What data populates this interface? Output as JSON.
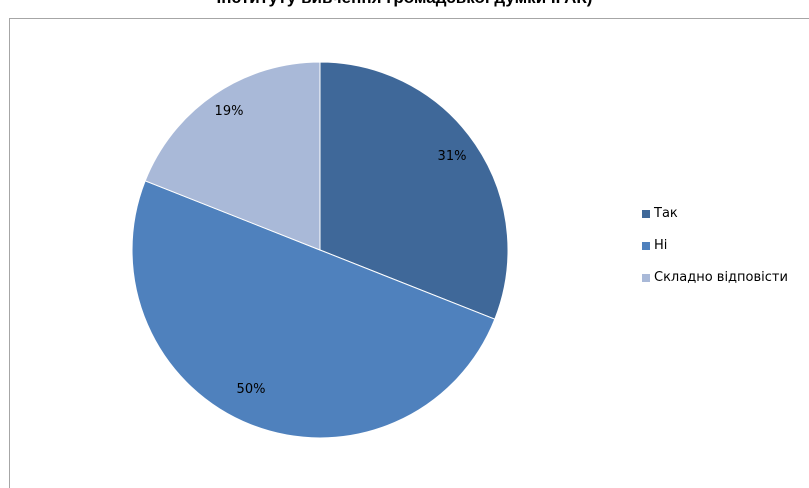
{
  "chart_data": {
    "type": "pie",
    "title": "Інституту вивчення громадської думки ІГАК)",
    "categories": [
      "Так",
      "Ні",
      "Складно відповісти"
    ],
    "values": [
      31,
      50,
      19
    ],
    "labels": [
      "31%",
      "50%",
      "19%"
    ],
    "colors": [
      "#3F6899",
      "#4F81BD",
      "#A9B9D8"
    ],
    "legend_position": "right"
  }
}
